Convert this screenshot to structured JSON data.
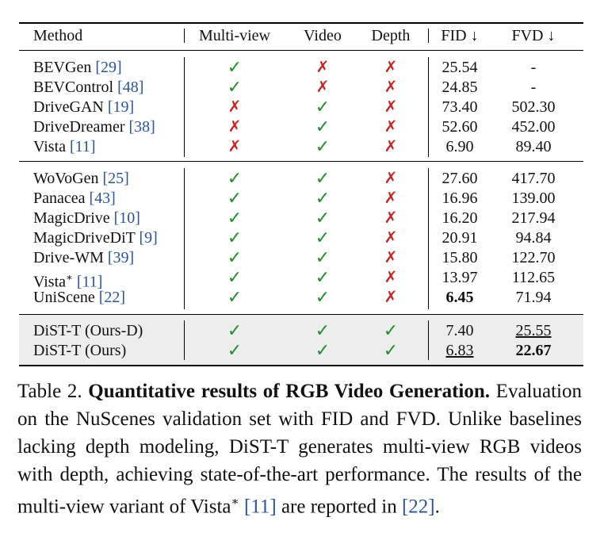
{
  "header": {
    "method": "Method",
    "multiview": "Multi-view",
    "video": "Video",
    "depth": "Depth",
    "fid": "FID ↓",
    "fvd": "FVD ↓"
  },
  "marks": {
    "check": "✓",
    "cross": "✗"
  },
  "groups": [
    [
      {
        "name": "BEVGen ",
        "cite": "[29]",
        "sup": "",
        "mv": "✓",
        "vd": "✗",
        "dp": "✗",
        "fid": "25.54",
        "fvd": "-"
      },
      {
        "name": "BEVControl ",
        "cite": "[48]",
        "sup": "",
        "mv": "✓",
        "vd": "✗",
        "dp": "✗",
        "fid": "24.85",
        "fvd": "-"
      },
      {
        "name": "DriveGAN ",
        "cite": "[19]",
        "sup": "",
        "mv": "✗",
        "vd": "✓",
        "dp": "✗",
        "fid": "73.40",
        "fvd": "502.30"
      },
      {
        "name": "DriveDreamer ",
        "cite": "[38]",
        "sup": "",
        "mv": "✗",
        "vd": "✓",
        "dp": "✗",
        "fid": "52.60",
        "fvd": "452.00"
      },
      {
        "name": "Vista ",
        "cite": "[11]",
        "sup": "",
        "mv": "✗",
        "vd": "✓",
        "dp": "✗",
        "fid": "6.90",
        "fvd": "89.40"
      }
    ],
    [
      {
        "name": "WoVoGen ",
        "cite": "[25]",
        "sup": "",
        "mv": "✓",
        "vd": "✓",
        "dp": "✗",
        "fid": "27.60",
        "fvd": "417.70"
      },
      {
        "name": "Panacea ",
        "cite": "[43]",
        "sup": "",
        "mv": "✓",
        "vd": "✓",
        "dp": "✗",
        "fid": "16.96",
        "fvd": "139.00"
      },
      {
        "name": "MagicDrive ",
        "cite": "[10]",
        "sup": "",
        "mv": "✓",
        "vd": "✓",
        "dp": "✗",
        "fid": "16.20",
        "fvd": "217.94"
      },
      {
        "name": "MagicDriveDiT ",
        "cite": "[9]",
        "sup": "",
        "mv": "✓",
        "vd": "✓",
        "dp": "✗",
        "fid": "20.91",
        "fvd": "94.84"
      },
      {
        "name": "Drive-WM ",
        "cite": "[39]",
        "sup": "",
        "mv": "✓",
        "vd": "✓",
        "dp": "✗",
        "fid": "15.80",
        "fvd": "122.70"
      },
      {
        "name": "Vista",
        "cite": "[11]",
        "sup": "∗",
        "mv": "✓",
        "vd": "✓",
        "dp": "✗",
        "fid": "13.97",
        "fvd": "112.65"
      },
      {
        "name": "UniScene ",
        "cite": "[22]",
        "sup": "",
        "mv": "✓",
        "vd": "✓",
        "dp": "✗",
        "fid": "6.45",
        "fvd": "71.94",
        "fid_style": "bold"
      }
    ],
    [
      {
        "name": "DiST-T (Ours-D)",
        "cite": "",
        "sup": "",
        "mv": "✓",
        "vd": "✓",
        "dp": "✓",
        "fid": "7.40",
        "fvd": "25.55",
        "fvd_style": "underline"
      },
      {
        "name": "DiST-T (Ours)",
        "cite": "",
        "sup": "",
        "mv": "✓",
        "vd": "✓",
        "dp": "✓",
        "fid": "6.83",
        "fvd": "22.67",
        "fid_style": "underline",
        "fvd_style": "bold"
      }
    ]
  ],
  "caption": {
    "label": "Table 2. ",
    "title": "Quantitative results of RGB Video Generation.",
    "text1": " Evaluation on the NuScenes validation set with FID and FVD. Unlike baselines lacking depth modeling, DiST-T generates multi-view RGB videos with depth, achieving state-of-the-art performance. The results of the multi-view variant of Vista",
    "sup": "∗",
    "cite1": "[11]",
    "text2": " are reported in ",
    "cite2": "[22]",
    "text3": "."
  }
}
